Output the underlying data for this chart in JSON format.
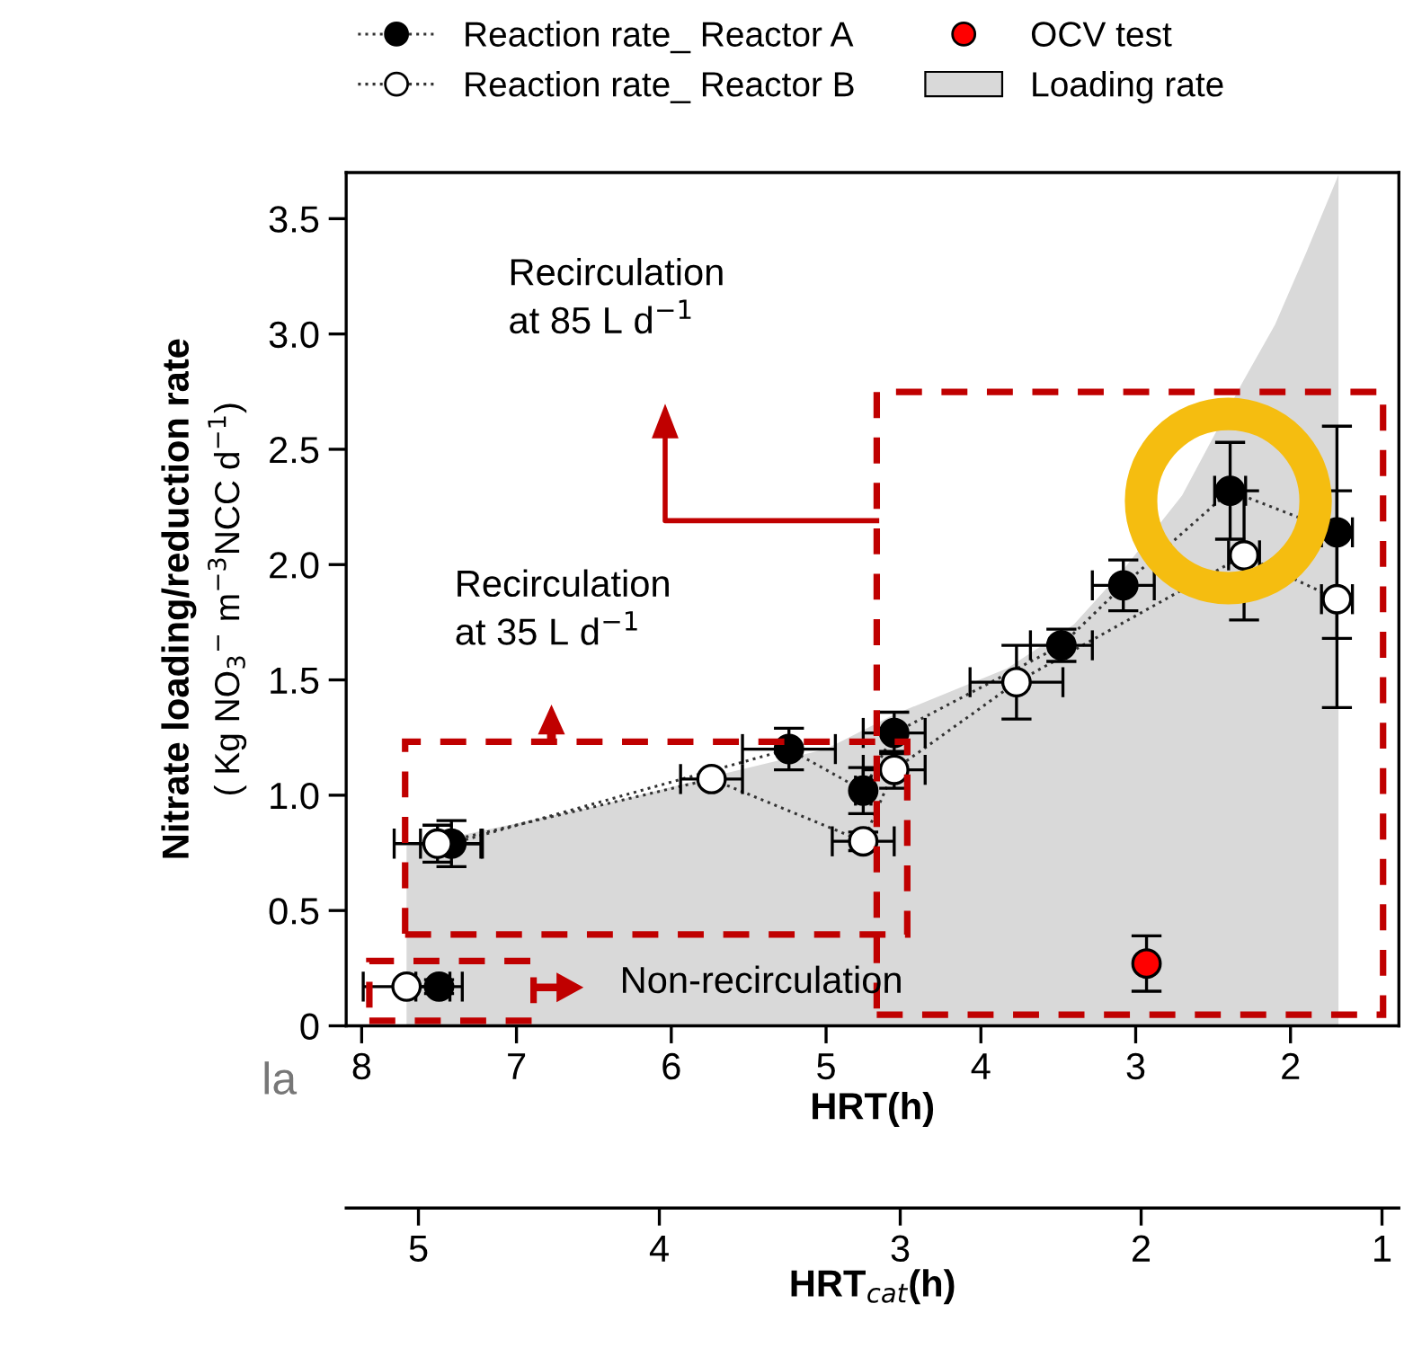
{
  "chart_data": {
    "type": "line",
    "xlabel": "HRT(h)",
    "ylabel": "Nitrate loading/reduction rate\n( Kg NO$_{3}$$^{−}$ m$^{−3}$NCC d$^{−1}$)",
    "x2label": "HRT$_{cat}$(h)",
    "xlim": [
      8.1,
      1.3
    ],
    "xticks": [
      8,
      7,
      6,
      5,
      4,
      3,
      2
    ],
    "x2lim": [
      5.3,
      0.93
    ],
    "x2ticks": [
      5,
      4,
      3,
      2,
      1
    ],
    "ylim": [
      0,
      3.7
    ],
    "yticks": [
      0,
      0.5,
      {
        "value": 1.0,
        "label": "1.0"
      },
      1.5,
      {
        "value": 2.0,
        "label": "2.0"
      },
      2.5,
      {
        "value": 3.0,
        "label": "3.0"
      },
      3.5
    ],
    "grid": false,
    "legend": "top",
    "line_style": "dotted",
    "series": [
      {
        "name": "Loading rate",
        "type": "area",
        "color": "#d9d9d9",
        "x": [
          7.71,
          7.4,
          6.5,
          5.74,
          5.0,
          4.56,
          3.83,
          3.4,
          3.09,
          2.7,
          2.31,
          2.1,
          1.9,
          1.69
        ],
        "values": [
          0.78,
          0.82,
          0.95,
          1.08,
          1.2,
          1.35,
          1.55,
          1.74,
          1.97,
          2.3,
          2.79,
          3.04,
          3.35,
          3.69
        ]
      },
      {
        "name": "Reaction rate_ Reactor A",
        "color": "#000000",
        "marker": "circle",
        "x": [
          7.42,
          5.24,
          4.76,
          4.56,
          3.48,
          3.08,
          2.39,
          1.7
        ],
        "values": [
          0.79,
          1.2,
          1.02,
          1.27,
          1.65,
          1.91,
          2.32,
          2.14
        ],
        "errors": [
          0.1,
          0.09,
          0.1,
          0.09,
          0.07,
          0.11,
          0.21,
          0.46
        ],
        "xerrors": [
          0.2,
          0.3,
          0.05,
          0.2,
          0.2,
          0.2,
          0.1,
          0.1
        ]
      },
      {
        "name": "Reaction rate_ Reactor B",
        "color": "#ffffff",
        "marker": "circle",
        "x": [
          7.51,
          5.74,
          4.76,
          4.56,
          3.77,
          2.3,
          1.7
        ],
        "values": [
          0.79,
          1.07,
          0.8,
          1.11,
          1.49,
          2.04,
          1.85
        ],
        "errors": [
          0.08,
          null,
          0.04,
          0.08,
          0.16,
          0.28,
          0.47
        ],
        "xerrors": [
          0.28,
          0.2,
          0.2,
          0.2,
          0.3,
          0.1,
          0.1
        ]
      },
      {
        "type": "scatter",
        "color": "#000000",
        "marker": "circle",
        "x": [
          7.5
        ],
        "values": [
          0.17
        ],
        "errors": [
          0.03
        ],
        "xerrors": [
          0.15
        ]
      },
      {
        "type": "scatter",
        "color": "#ffffff",
        "marker": "circle",
        "x": [
          7.71
        ],
        "values": [
          0.17
        ],
        "xerrors": [
          0.28
        ]
      },
      {
        "name": "OCV test",
        "type": "scatter",
        "color": "#ff0000",
        "marker": "circle",
        "x": [
          2.93
        ],
        "values": [
          0.27
        ],
        "errors": [
          0.12
        ]
      }
    ],
    "annotations": [
      "Recirculation\nat 85 L d$^{−1}$",
      "Recirculation\nat 35 L d$^{−1}$",
      "Non-recirculation",
      "la"
    ]
  }
}
